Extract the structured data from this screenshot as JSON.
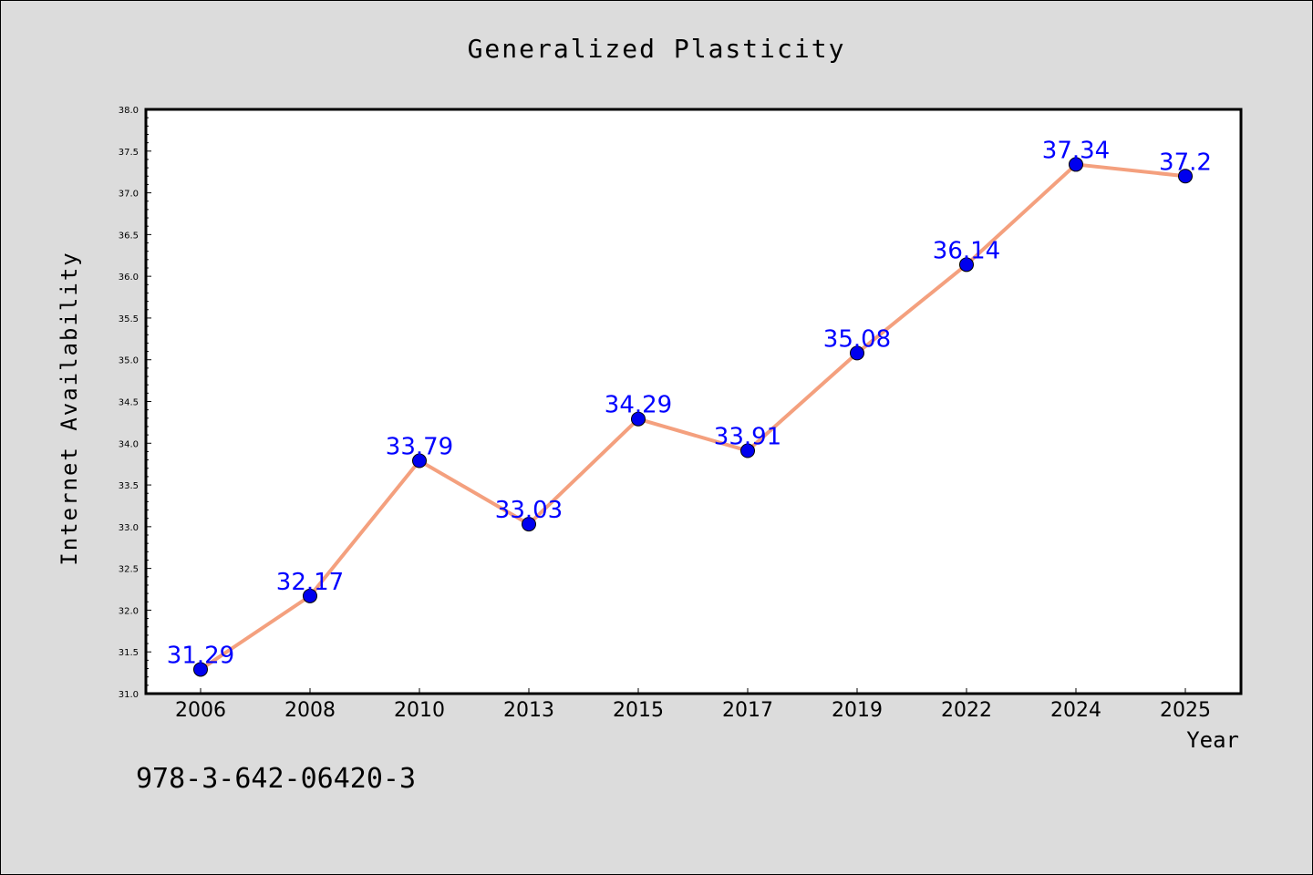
{
  "chart_data": {
    "type": "line",
    "title": "Generalized Plasticity",
    "xlabel": "Year",
    "ylabel": "Internet Availability",
    "categories": [
      "2006",
      "2008",
      "2010",
      "2013",
      "2015",
      "2017",
      "2019",
      "2022",
      "2024",
      "2025"
    ],
    "series": [
      {
        "values": [
          31.29,
          32.17,
          33.79,
          33.03,
          34.29,
          33.91,
          35.08,
          36.14,
          37.34,
          37.2
        ],
        "labels": [
          "31.29",
          "32.17",
          "33.79",
          "33.03",
          "34.29",
          "33.91",
          "35.08",
          "36.14",
          "37.34",
          "37.2"
        ],
        "line_color": "#f4a07e",
        "marker_color": "#0000ee"
      }
    ],
    "ylim": [
      31.0,
      38.0
    ],
    "yticks": [
      "31.0",
      "31.5",
      "32.0",
      "32.5",
      "33.0",
      "33.5",
      "34.0",
      "34.5",
      "35.0",
      "35.5",
      "36.0",
      "36.5",
      "37.0",
      "37.5",
      "38.0"
    ],
    "grid": false,
    "legend": "none"
  },
  "footnote": "978-3-642-06420-3",
  "colors": {
    "background": "#dcdcdc",
    "plot_background": "#ffffff",
    "data_label": "#0000ff"
  }
}
